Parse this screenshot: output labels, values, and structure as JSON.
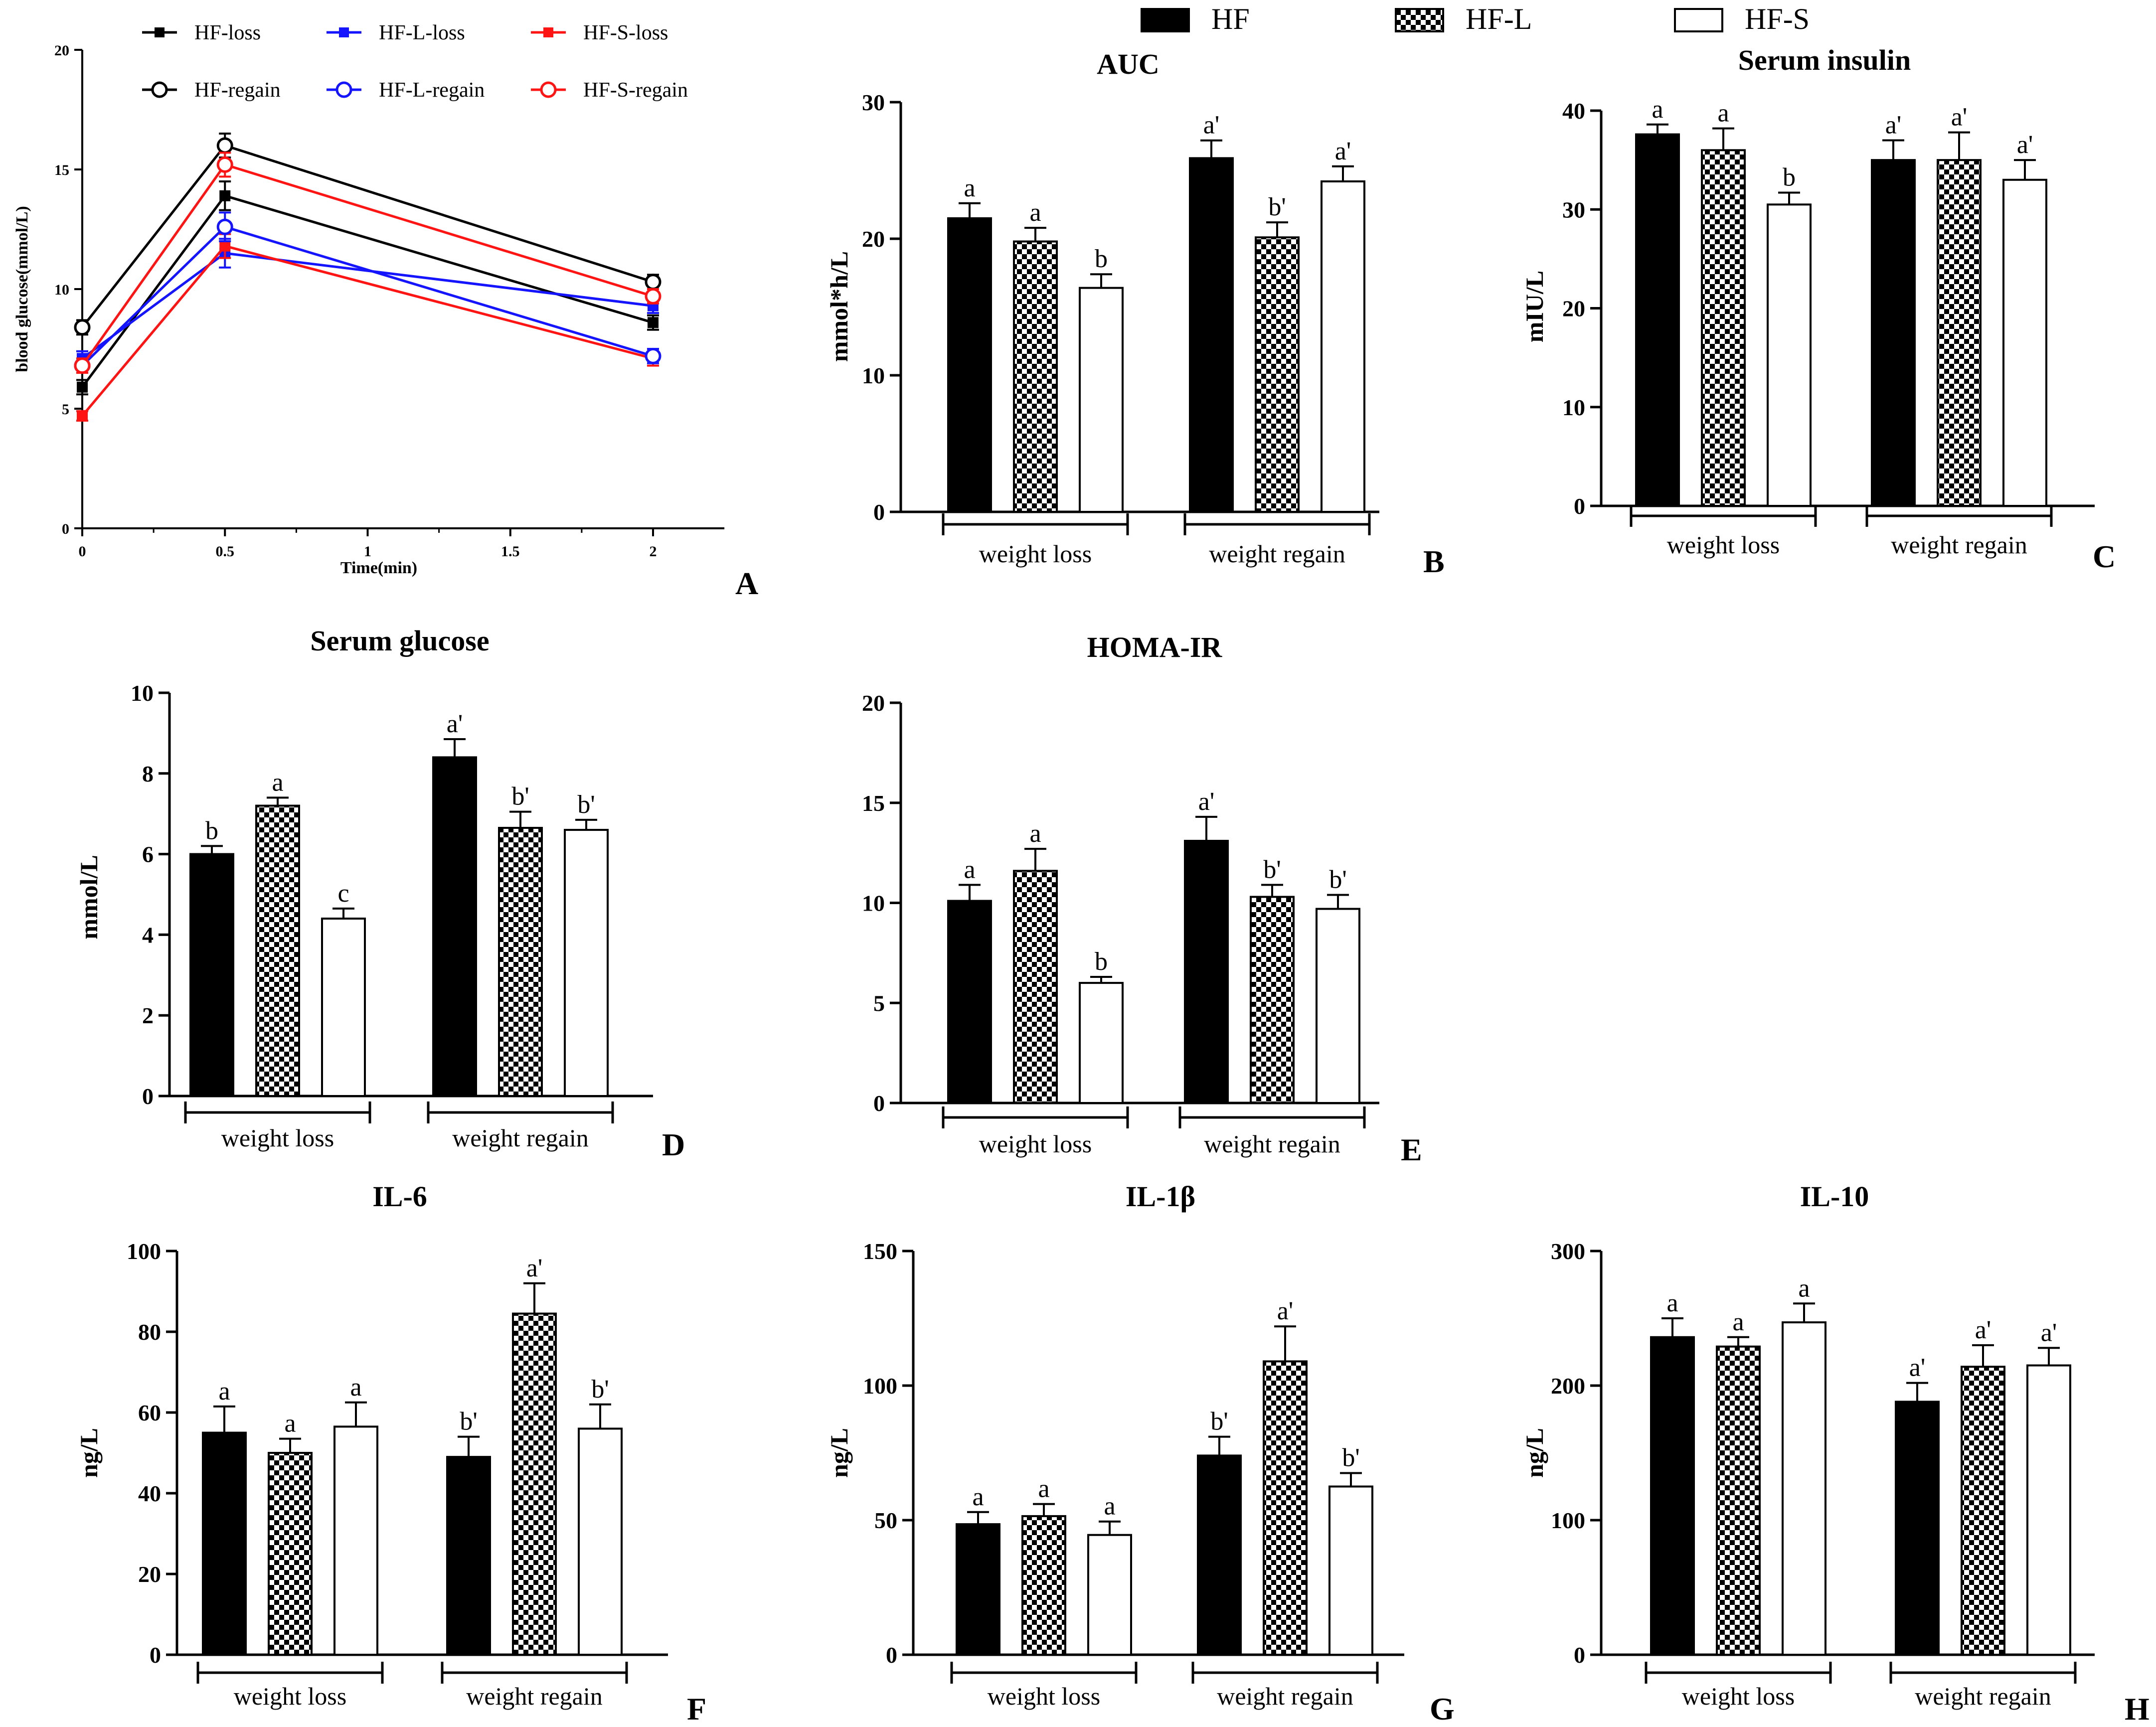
{
  "legend": {
    "groups": [
      {
        "name": "HF",
        "fill": "black"
      },
      {
        "name": "HF-L",
        "fill": "check"
      },
      {
        "name": "HF-S",
        "fill": "white"
      }
    ]
  },
  "chart_data": [
    {
      "panel": "A",
      "type": "line",
      "title": "",
      "xlabel": "Time(min)",
      "ylabel": "blood glucose(mmol/L)",
      "xlim": [
        0,
        2.25
      ],
      "ylim": [
        0,
        20
      ],
      "xticks": [
        0,
        0.5,
        1,
        1.5,
        2
      ],
      "xtick_labels": [
        "0",
        "0.5",
        "1",
        "1.5",
        "2"
      ],
      "yticks": [
        0,
        5,
        10,
        15,
        20
      ],
      "ytick_labels": [
        "0",
        "5",
        "10",
        "15",
        "20"
      ],
      "x": [
        0,
        0.5,
        2
      ],
      "series": [
        {
          "name": "HF-loss",
          "color": "#000000",
          "marker": "square",
          "values": [
            5.9,
            13.9,
            8.6
          ],
          "errors": [
            0.3,
            0.6,
            0.3
          ]
        },
        {
          "name": "HF-L-loss",
          "color": "#1414ff",
          "marker": "square",
          "values": [
            7.1,
            11.5,
            9.3
          ],
          "errors": [
            0.3,
            0.6,
            0.3
          ]
        },
        {
          "name": "HF-S-loss",
          "color": "#ff1414",
          "marker": "square",
          "values": [
            4.7,
            11.8,
            7.1
          ],
          "errors": [
            0.2,
            0.5,
            0.3
          ]
        },
        {
          "name": "HF-regain",
          "color": "#000000",
          "marker": "circle",
          "values": [
            8.4,
            16.0,
            10.3
          ],
          "errors": [
            0.3,
            0.5,
            0.3
          ]
        },
        {
          "name": "HF-L-regain",
          "color": "#1414ff",
          "marker": "circle",
          "values": [
            6.8,
            12.6,
            7.2
          ],
          "errors": [
            0.3,
            0.6,
            0.3
          ]
        },
        {
          "name": "HF-S-regain",
          "color": "#ff1414",
          "marker": "circle",
          "values": [
            6.8,
            15.2,
            9.7
          ],
          "errors": [
            0.3,
            0.5,
            0.3
          ]
        }
      ]
    },
    {
      "panel": "B",
      "type": "bar",
      "title": "AUC",
      "ylabel": "mmol*h/L",
      "xlabel": "",
      "ylim": [
        0,
        30
      ],
      "yticks": [
        0,
        10,
        20,
        30
      ],
      "ytick_labels": [
        "0",
        "10",
        "20",
        "30"
      ],
      "categories": [
        "weight loss",
        "weight regain"
      ],
      "series": [
        {
          "name": "HF",
          "values": [
            21.5,
            25.9
          ],
          "errors": [
            1.1,
            1.3
          ],
          "letters": [
            "a",
            "a'"
          ]
        },
        {
          "name": "HF-L",
          "values": [
            19.8,
            20.1
          ],
          "errors": [
            1.0,
            1.1
          ],
          "letters": [
            "a",
            "b'"
          ]
        },
        {
          "name": "HF-S",
          "values": [
            16.4,
            24.2
          ],
          "errors": [
            1.0,
            1.1
          ],
          "letters": [
            "b",
            "a'"
          ]
        }
      ]
    },
    {
      "panel": "C",
      "type": "bar",
      "title": "Serum insulin",
      "ylabel": "mIU/L",
      "xlabel": "",
      "ylim": [
        0,
        40
      ],
      "yticks": [
        0,
        10,
        20,
        30,
        40
      ],
      "ytick_labels": [
        "0",
        "10",
        "20",
        "30",
        "40"
      ],
      "categories": [
        "weight loss",
        "weight regain"
      ],
      "series": [
        {
          "name": "HF",
          "values": [
            37.6,
            35.0
          ],
          "errors": [
            1.0,
            2.0
          ],
          "letters": [
            "a",
            "a'"
          ]
        },
        {
          "name": "HF-L",
          "values": [
            36.0,
            35.0
          ],
          "errors": [
            2.2,
            2.8
          ],
          "letters": [
            "a",
            "a'"
          ]
        },
        {
          "name": "HF-S",
          "values": [
            30.5,
            33.0
          ],
          "errors": [
            1.2,
            2.0
          ],
          "letters": [
            "b",
            "a'"
          ]
        }
      ]
    },
    {
      "panel": "D",
      "type": "bar",
      "title": "Serum glucose",
      "ylabel": "mmol/L",
      "xlabel": "",
      "ylim": [
        0,
        10
      ],
      "yticks": [
        0,
        2,
        4,
        6,
        8,
        10
      ],
      "ytick_labels": [
        "0",
        "2",
        "4",
        "6",
        "8",
        "10"
      ],
      "categories": [
        "weight loss",
        "weight regain"
      ],
      "series": [
        {
          "name": "HF",
          "values": [
            6.0,
            8.4
          ],
          "errors": [
            0.2,
            0.45
          ],
          "letters": [
            "b",
            "a'"
          ]
        },
        {
          "name": "HF-L",
          "values": [
            7.2,
            6.65
          ],
          "errors": [
            0.2,
            0.4
          ],
          "letters": [
            "a",
            "b'"
          ]
        },
        {
          "name": "HF-S",
          "values": [
            4.4,
            6.6
          ],
          "errors": [
            0.25,
            0.25
          ],
          "letters": [
            "c",
            "b'"
          ]
        }
      ]
    },
    {
      "panel": "E",
      "type": "bar",
      "title": "HOMA-IR",
      "ylabel": "",
      "xlabel": "",
      "ylim": [
        0,
        20
      ],
      "yticks": [
        0,
        5,
        10,
        15,
        20
      ],
      "ytick_labels": [
        "0",
        "5",
        "10",
        "15",
        "20"
      ],
      "categories": [
        "weight loss",
        "weight regain"
      ],
      "series": [
        {
          "name": "HF",
          "values": [
            10.1,
            13.1
          ],
          "errors": [
            0.8,
            1.2
          ],
          "letters": [
            "a",
            "a'"
          ]
        },
        {
          "name": "HF-L",
          "values": [
            11.6,
            10.3
          ],
          "errors": [
            1.1,
            0.6
          ],
          "letters": [
            "a",
            "b'"
          ]
        },
        {
          "name": "HF-S",
          "values": [
            6.0,
            9.7
          ],
          "errors": [
            0.3,
            0.7
          ],
          "letters": [
            "b",
            "b'"
          ]
        }
      ]
    },
    {
      "panel": "F",
      "type": "bar",
      "title": "IL-6",
      "ylabel": "ng/L",
      "xlabel": "",
      "ylim": [
        0,
        100
      ],
      "yticks": [
        0,
        20,
        40,
        60,
        80,
        100
      ],
      "ytick_labels": [
        "0",
        "20",
        "40",
        "60",
        "80",
        "100"
      ],
      "categories": [
        "weight loss",
        "weight regain"
      ],
      "series": [
        {
          "name": "HF",
          "values": [
            55.0,
            49.0
          ],
          "errors": [
            6.5,
            5.0
          ],
          "letters": [
            "a",
            "b'"
          ]
        },
        {
          "name": "HF-L",
          "values": [
            50.0,
            84.5
          ],
          "errors": [
            3.5,
            7.5
          ],
          "letters": [
            "a",
            "a'"
          ]
        },
        {
          "name": "HF-S",
          "values": [
            56.5,
            56.0
          ],
          "errors": [
            6.0,
            6.0
          ],
          "letters": [
            "a",
            "b'"
          ]
        }
      ]
    },
    {
      "panel": "G",
      "type": "bar",
      "title": "IL-1β",
      "ylabel": "ng/L",
      "xlabel": "",
      "ylim": [
        0,
        150
      ],
      "yticks": [
        0,
        50,
        100,
        150
      ],
      "ytick_labels": [
        "0",
        "50",
        "100",
        "150"
      ],
      "categories": [
        "weight loss",
        "weight regain"
      ],
      "series": [
        {
          "name": "HF",
          "values": [
            48.5,
            74.0
          ],
          "errors": [
            4.5,
            7.0
          ],
          "letters": [
            "a",
            "b'"
          ]
        },
        {
          "name": "HF-L",
          "values": [
            51.5,
            109.0
          ],
          "errors": [
            4.5,
            13.0
          ],
          "letters": [
            "a",
            "a'"
          ]
        },
        {
          "name": "HF-S",
          "values": [
            44.5,
            62.5
          ],
          "errors": [
            5.0,
            5.0
          ],
          "letters": [
            "a",
            "b'"
          ]
        }
      ]
    },
    {
      "panel": "H",
      "type": "bar",
      "title": "IL-10",
      "ylabel": "ng/L",
      "xlabel": "",
      "ylim": [
        0,
        300
      ],
      "yticks": [
        0,
        100,
        200,
        300
      ],
      "ytick_labels": [
        "0",
        "100",
        "200",
        "300"
      ],
      "categories": [
        "weight loss",
        "weight regain"
      ],
      "series": [
        {
          "name": "HF",
          "values": [
            236.0,
            188.0
          ],
          "errors": [
            14.0,
            14.0
          ],
          "letters": [
            "a",
            "a'"
          ]
        },
        {
          "name": "HF-L",
          "values": [
            229.0,
            214.0
          ],
          "errors": [
            7.0,
            16.0
          ],
          "letters": [
            "a",
            "a'"
          ]
        },
        {
          "name": "HF-S",
          "values": [
            247.0,
            215.0
          ],
          "errors": [
            14.0,
            13.0
          ],
          "letters": [
            "a",
            "a'"
          ]
        }
      ]
    }
  ]
}
